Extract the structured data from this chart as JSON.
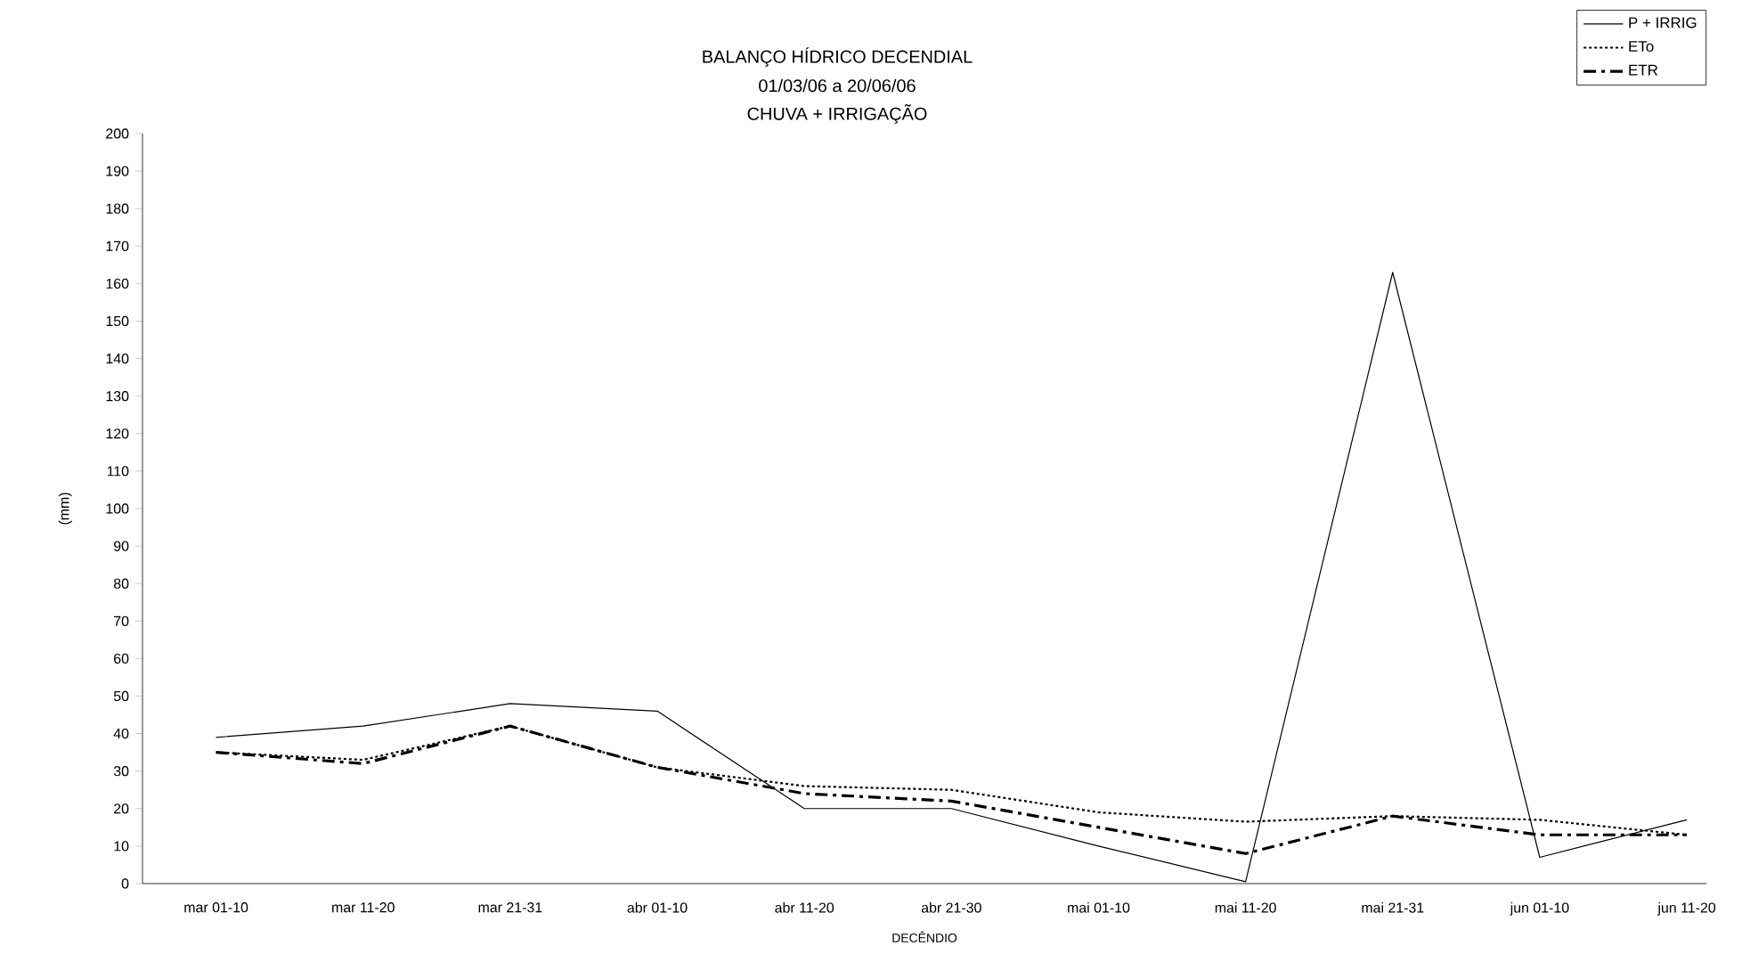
{
  "chart_data": {
    "type": "line",
    "title": "BALANÇO HÍDRICO DECENDIAL",
    "subtitle": "01/03/06 a 20/06/06",
    "annotations": [
      "CHUVA + IRRIGAÇÃO"
    ],
    "xlabel": "DECÊNDIO",
    "ylabel": "(mm)",
    "categories": [
      "mar 01-10",
      "mar 11-20",
      "mar 21-31",
      "abr 01-10",
      "abr 11-20",
      "abr 21-30",
      "mai 01-10",
      "mai 11-20",
      "mai 21-31",
      "jun 01-10",
      "jun 11-20"
    ],
    "ylim": [
      0,
      200
    ],
    "yticks": [
      0,
      10,
      20,
      30,
      40,
      50,
      60,
      70,
      80,
      90,
      100,
      110,
      120,
      130,
      140,
      150,
      160,
      170,
      180,
      190,
      200
    ],
    "legend": "top right",
    "grid": false,
    "marker": "none",
    "series": [
      {
        "name": "P + IRRIG",
        "color": "#000000",
        "line_style": "solid",
        "values": [
          39,
          42,
          48,
          46,
          20,
          20,
          10,
          0.5,
          163,
          7,
          17
        ]
      },
      {
        "name": "ETo",
        "color": "#000000",
        "line_style": "dotted",
        "values": [
          35,
          33,
          42,
          31,
          26,
          25,
          19,
          16.5,
          18,
          17,
          13
        ]
      },
      {
        "name": "ETR",
        "color": "#000000",
        "line_style": "dashed",
        "values": [
          35,
          32,
          42,
          31,
          24,
          22,
          15,
          8,
          18,
          13,
          13
        ]
      }
    ]
  }
}
